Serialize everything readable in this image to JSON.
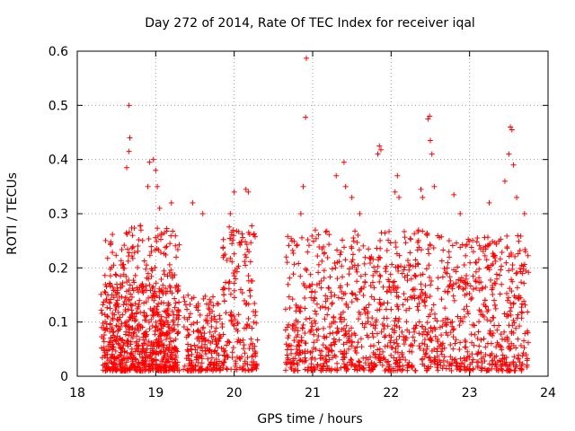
{
  "chart_data": {
    "type": "scatter",
    "title": "Day 272 of 2014, Rate Of TEC Index for receiver iqal",
    "xlabel": "GPS time / hours",
    "ylabel": "ROTI / TECUs",
    "xlim": [
      18,
      24
    ],
    "ylim": [
      0,
      0.6
    ],
    "xticks": [
      "18",
      "19",
      "20",
      "21",
      "22",
      "23",
      "24"
    ],
    "yticks": [
      "0",
      "0.1",
      "0.2",
      "0.3",
      "0.4",
      "0.5",
      "0.6"
    ],
    "grid": true,
    "marker": "+",
    "color": "#ff0000",
    "series": [
      {
        "name": "ROTI",
        "clusters": [
          {
            "x0": 18.3,
            "x1": 19.3,
            "ymax": 0.17
          },
          {
            "x0": 18.35,
            "x1": 19.3,
            "ymax": 0.28
          },
          {
            "x0": 19.35,
            "x1": 19.85,
            "ymax": 0.15
          },
          {
            "x0": 19.85,
            "x1": 20.3,
            "ymax": 0.28
          },
          {
            "x0": 20.65,
            "x1": 21.0,
            "ymax": 0.26
          },
          {
            "x0": 21.0,
            "x1": 22.0,
            "ymax": 0.27
          },
          {
            "x0": 22.0,
            "x1": 22.7,
            "ymax": 0.27
          },
          {
            "x0": 22.7,
            "x1": 23.75,
            "ymax": 0.26
          }
        ],
        "peaks": [
          {
            "x": 18.55,
            "y": 0.185
          },
          {
            "x": 18.63,
            "y": 0.385
          },
          {
            "x": 18.66,
            "y": 0.415
          },
          {
            "x": 18.67,
            "y": 0.44
          },
          {
            "x": 18.66,
            "y": 0.5
          },
          {
            "x": 18.9,
            "y": 0.35
          },
          {
            "x": 18.92,
            "y": 0.395
          },
          {
            "x": 18.97,
            "y": 0.4
          },
          {
            "x": 19.0,
            "y": 0.38
          },
          {
            "x": 19.02,
            "y": 0.35
          },
          {
            "x": 19.05,
            "y": 0.31
          },
          {
            "x": 19.2,
            "y": 0.32
          },
          {
            "x": 19.47,
            "y": 0.32
          },
          {
            "x": 19.6,
            "y": 0.3
          },
          {
            "x": 19.95,
            "y": 0.3
          },
          {
            "x": 20.0,
            "y": 0.34
          },
          {
            "x": 20.15,
            "y": 0.345
          },
          {
            "x": 20.18,
            "y": 0.34
          },
          {
            "x": 20.85,
            "y": 0.3
          },
          {
            "x": 20.88,
            "y": 0.35
          },
          {
            "x": 20.91,
            "y": 0.478
          },
          {
            "x": 20.92,
            "y": 0.587
          },
          {
            "x": 21.3,
            "y": 0.37
          },
          {
            "x": 21.4,
            "y": 0.395
          },
          {
            "x": 21.42,
            "y": 0.35
          },
          {
            "x": 21.5,
            "y": 0.33
          },
          {
            "x": 21.6,
            "y": 0.3
          },
          {
            "x": 21.83,
            "y": 0.41
          },
          {
            "x": 21.85,
            "y": 0.425
          },
          {
            "x": 21.87,
            "y": 0.418
          },
          {
            "x": 22.05,
            "y": 0.34
          },
          {
            "x": 22.08,
            "y": 0.37
          },
          {
            "x": 22.1,
            "y": 0.33
          },
          {
            "x": 22.38,
            "y": 0.345
          },
          {
            "x": 22.4,
            "y": 0.33
          },
          {
            "x": 22.47,
            "y": 0.475
          },
          {
            "x": 22.49,
            "y": 0.48
          },
          {
            "x": 22.5,
            "y": 0.435
          },
          {
            "x": 22.52,
            "y": 0.41
          },
          {
            "x": 22.55,
            "y": 0.35
          },
          {
            "x": 22.8,
            "y": 0.335
          },
          {
            "x": 22.88,
            "y": 0.3
          },
          {
            "x": 23.25,
            "y": 0.32
          },
          {
            "x": 23.45,
            "y": 0.36
          },
          {
            "x": 23.5,
            "y": 0.41
          },
          {
            "x": 23.52,
            "y": 0.46
          },
          {
            "x": 23.54,
            "y": 0.455
          },
          {
            "x": 23.56,
            "y": 0.39
          },
          {
            "x": 23.6,
            "y": 0.33
          },
          {
            "x": 23.7,
            "y": 0.3
          }
        ]
      }
    ]
  }
}
